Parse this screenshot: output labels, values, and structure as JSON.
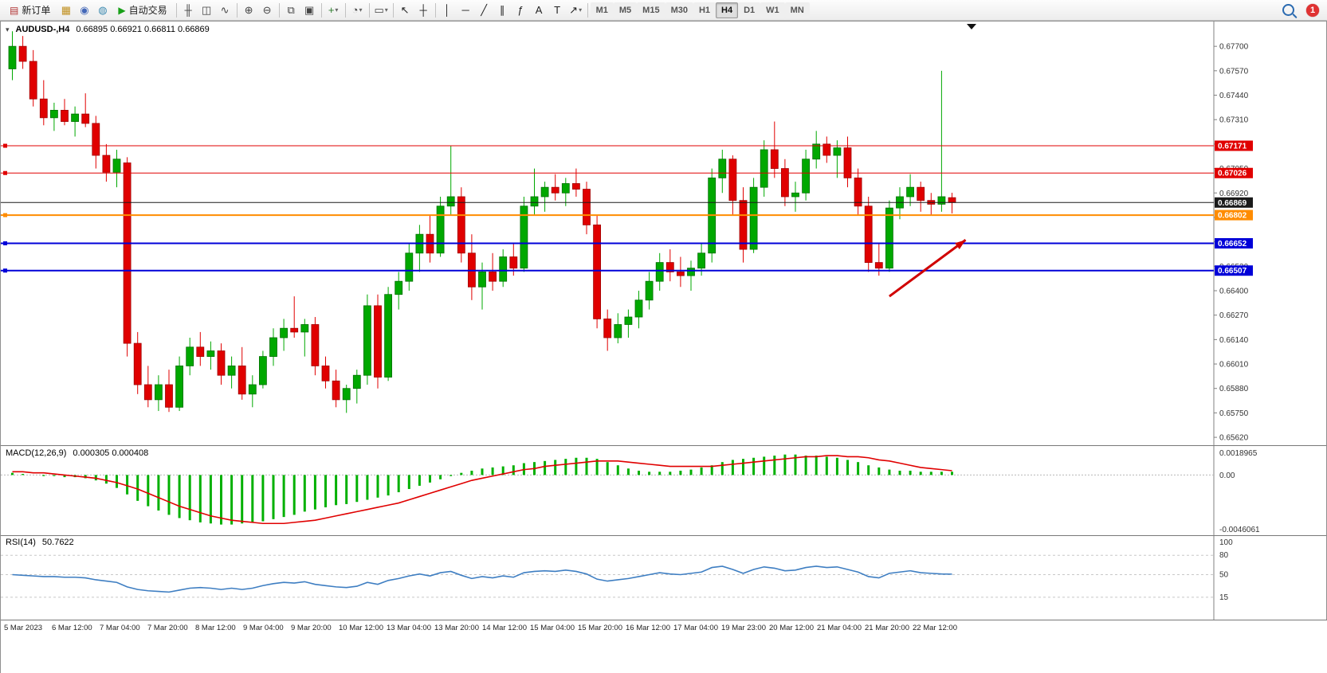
{
  "toolbar": {
    "new_order_label": "新订单",
    "auto_trading_label": "自动交易",
    "timeframes": [
      "M1",
      "M5",
      "M15",
      "M30",
      "H1",
      "H4",
      "D1",
      "W1",
      "MN"
    ],
    "active_timeframe": "H4",
    "notification_count": "1",
    "items": [
      {
        "type": "button",
        "name": "new-order-button",
        "glyph": "▤",
        "glyph_color": "#b03030",
        "label_key": "new_order_label"
      },
      {
        "type": "icon",
        "name": "market-watch-icon",
        "glyph": "▦",
        "color": "#c09020"
      },
      {
        "type": "icon",
        "name": "navigator-icon",
        "glyph": "◉",
        "color": "#4468b8"
      },
      {
        "type": "icon",
        "name": "terminal-icon",
        "glyph": "◍",
        "color": "#3d8ab0"
      },
      {
        "type": "button",
        "name": "auto-trading-button",
        "glyph": "▶",
        "glyph_color": "#18a018",
        "label_key": "auto_trading_label"
      },
      {
        "type": "sep"
      },
      {
        "type": "icon",
        "name": "bar-chart-icon",
        "glyph": "╫",
        "color": "#444"
      },
      {
        "type": "icon",
        "name": "candlestick-chart-icon",
        "glyph": "◫",
        "color": "#444"
      },
      {
        "type": "icon",
        "name": "line-chart-icon",
        "glyph": "∿",
        "color": "#444"
      },
      {
        "type": "sep"
      },
      {
        "type": "icon",
        "name": "zoom-in-icon",
        "glyph": "⊕",
        "color": "#444"
      },
      {
        "type": "icon",
        "name": "zoom-out-icon",
        "glyph": "⊖",
        "color": "#444"
      },
      {
        "type": "sep"
      },
      {
        "type": "icon",
        "name": "tile-windows-icon",
        "glyph": "⧉",
        "color": "#444"
      },
      {
        "type": "icon",
        "name": "cascade-windows-icon",
        "glyph": "▣",
        "color": "#444"
      },
      {
        "type": "sep"
      },
      {
        "type": "icon",
        "name": "new-chart-icon",
        "glyph": "+",
        "color": "#2a7a2a",
        "caret": true
      },
      {
        "type": "sep"
      },
      {
        "type": "icon",
        "name": "period-icon",
        "glyph": "◔",
        "color": "#444",
        "caret": true
      },
      {
        "type": "sep"
      },
      {
        "type": "icon",
        "name": "chart-shot-icon",
        "glyph": "▭",
        "color": "#444",
        "caret": true
      },
      {
        "type": "sep"
      },
      {
        "type": "icon",
        "name": "cursor-icon",
        "glyph": "↖",
        "color": "#222"
      },
      {
        "type": "icon",
        "name": "crosshair-icon",
        "glyph": "┼",
        "color": "#222"
      },
      {
        "type": "sep"
      },
      {
        "type": "icon",
        "name": "vertical-line-icon",
        "glyph": "│",
        "color": "#222"
      },
      {
        "type": "icon",
        "name": "horizontal-line-icon",
        "glyph": "─",
        "color": "#222"
      },
      {
        "type": "icon",
        "name": "trendline-icon",
        "glyph": "╱",
        "color": "#222"
      },
      {
        "type": "icon",
        "name": "equidistant-channel-icon",
        "glyph": "∥",
        "color": "#222"
      },
      {
        "type": "icon",
        "name": "fibonacci-icon",
        "glyph": "ƒ",
        "color": "#222"
      },
      {
        "type": "icon",
        "name": "text-icon",
        "glyph": "A",
        "color": "#222"
      },
      {
        "type": "icon",
        "name": "text-label-icon",
        "glyph": "T",
        "color": "#222"
      },
      {
        "type": "icon",
        "name": "arrows-icon",
        "glyph": "↗",
        "color": "#222",
        "caret": true
      },
      {
        "type": "sep"
      },
      {
        "type": "timeframes"
      }
    ]
  },
  "chart": {
    "title": "AUDUSD-,H4",
    "ohlc": "0.66895 0.66921 0.66811 0.66869"
  },
  "chart_data": {
    "type": "candlestick",
    "symbol": "AUDUSD",
    "timeframe": "H4",
    "open": 0.66895,
    "high": 0.66921,
    "low": 0.66811,
    "close": 0.66869,
    "colors": {
      "up": "#00a800",
      "down": "#e00000",
      "up_border": "#007000",
      "down_border": "#a00000"
    },
    "price_axis": {
      "view_max": 0.67832,
      "view_min": 0.65578,
      "ticks": [
        "0.67700",
        "0.67570",
        "0.67440",
        "0.67310",
        "0.67180",
        "0.67050",
        "0.66920",
        "0.66790",
        "0.66660",
        "0.66530",
        "0.66400",
        "0.66270",
        "0.66140",
        "0.66010",
        "0.65880",
        "0.65750",
        "0.65620"
      ]
    },
    "time_labels": [
      "5 Mar 2023",
      "6 Mar 12:00",
      "7 Mar 04:00",
      "7 Mar 20:00",
      "8 Mar 12:00",
      "9 Mar 04:00",
      "9 Mar 20:00",
      "10 Mar 12:00",
      "13 Mar 04:00",
      "13 Mar 20:00",
      "14 Mar 12:00",
      "15 Mar 04:00",
      "15 Mar 20:00",
      "16 Mar 12:00",
      "17 Mar 04:00",
      "19 Mar 23:00",
      "20 Mar 12:00",
      "21 Mar 04:00",
      "21 Mar 20:00",
      "22 Mar 12:00"
    ],
    "hlines": [
      {
        "price": 0.67171,
        "label": "0.67171",
        "color": "#e00000",
        "width": 1
      },
      {
        "price": 0.67026,
        "label": "0.67026",
        "color": "#e00000",
        "width": 1
      },
      {
        "price": 0.66869,
        "label": "0.66869",
        "color": "#1a1a1a",
        "width": 1,
        "current": true
      },
      {
        "price": 0.66802,
        "label": "0.66802",
        "color": "#ff8c00",
        "width": 2
      },
      {
        "price": 0.66652,
        "label": "0.66652",
        "color": "#0000d8",
        "width": 2
      },
      {
        "price": 0.66507,
        "label": "0.66507",
        "color": "#0000d8",
        "width": 2
      }
    ],
    "arrow": {
      "from_candle": 84,
      "from_price": 0.6637,
      "to_candle": 91.3,
      "to_price": 0.6667,
      "color": "#d00000"
    },
    "candles": [
      [
        0.6758,
        0.6778,
        0.6752,
        0.677
      ],
      [
        0.677,
        0.67755,
        0.6758,
        0.6762
      ],
      [
        0.6762,
        0.6768,
        0.6738,
        0.6742
      ],
      [
        0.6742,
        0.6752,
        0.6728,
        0.6732
      ],
      [
        0.6732,
        0.674,
        0.6725,
        0.6736
      ],
      [
        0.6736,
        0.6742,
        0.6728,
        0.673
      ],
      [
        0.673,
        0.6738,
        0.6722,
        0.6734
      ],
      [
        0.6734,
        0.6745,
        0.6727,
        0.6729
      ],
      [
        0.6729,
        0.6733,
        0.6705,
        0.6712
      ],
      [
        0.6712,
        0.6718,
        0.6698,
        0.6703
      ],
      [
        0.6703,
        0.6715,
        0.6695,
        0.671
      ],
      [
        0.6708,
        0.6711,
        0.6605,
        0.6612
      ],
      [
        0.6612,
        0.6618,
        0.6585,
        0.659
      ],
      [
        0.659,
        0.66,
        0.6578,
        0.6582
      ],
      [
        0.6582,
        0.6595,
        0.6576,
        0.659
      ],
      [
        0.659,
        0.6598,
        0.65755,
        0.6578
      ],
      [
        0.6578,
        0.6605,
        0.6576,
        0.66
      ],
      [
        0.66,
        0.6615,
        0.6595,
        0.661
      ],
      [
        0.661,
        0.6618,
        0.66,
        0.6605
      ],
      [
        0.6605,
        0.6613,
        0.6598,
        0.6608
      ],
      [
        0.6608,
        0.6612,
        0.659,
        0.6595
      ],
      [
        0.6595,
        0.6605,
        0.6588,
        0.66
      ],
      [
        0.66,
        0.661,
        0.6582,
        0.6585
      ],
      [
        0.6585,
        0.6595,
        0.6578,
        0.659
      ],
      [
        0.659,
        0.6608,
        0.6588,
        0.6605
      ],
      [
        0.6605,
        0.662,
        0.66,
        0.6615
      ],
      [
        0.6615,
        0.6625,
        0.6608,
        0.662
      ],
      [
        0.662,
        0.6637,
        0.6615,
        0.6618
      ],
      [
        0.6618,
        0.6625,
        0.6605,
        0.6622
      ],
      [
        0.6622,
        0.6626,
        0.6595,
        0.66
      ],
      [
        0.66,
        0.6605,
        0.6588,
        0.6592
      ],
      [
        0.6592,
        0.6598,
        0.6578,
        0.6582
      ],
      [
        0.6582,
        0.659,
        0.6575,
        0.6588
      ],
      [
        0.6588,
        0.6598,
        0.658,
        0.6595
      ],
      [
        0.6595,
        0.6638,
        0.659,
        0.6632
      ],
      [
        0.6632,
        0.6638,
        0.6588,
        0.6594
      ],
      [
        0.6594,
        0.6642,
        0.6592,
        0.6638
      ],
      [
        0.6638,
        0.665,
        0.663,
        0.6645
      ],
      [
        0.6645,
        0.6665,
        0.664,
        0.666
      ],
      [
        0.666,
        0.6675,
        0.665,
        0.667
      ],
      [
        0.667,
        0.668,
        0.6655,
        0.666
      ],
      [
        0.666,
        0.669,
        0.6658,
        0.6685
      ],
      [
        0.6685,
        0.6717,
        0.668,
        0.669
      ],
      [
        0.669,
        0.6695,
        0.6655,
        0.666
      ],
      [
        0.666,
        0.667,
        0.6635,
        0.6642
      ],
      [
        0.6642,
        0.6655,
        0.663,
        0.665
      ],
      [
        0.665,
        0.666,
        0.664,
        0.6645
      ],
      [
        0.6645,
        0.6662,
        0.6642,
        0.6658
      ],
      [
        0.6658,
        0.6665,
        0.6648,
        0.6652
      ],
      [
        0.6652,
        0.669,
        0.665,
        0.6685
      ],
      [
        0.6685,
        0.6705,
        0.668,
        0.669
      ],
      [
        0.669,
        0.6698,
        0.6682,
        0.6695
      ],
      [
        0.6695,
        0.6702,
        0.6688,
        0.6692
      ],
      [
        0.6692,
        0.67,
        0.6685,
        0.6697
      ],
      [
        0.6697,
        0.6705,
        0.669,
        0.6694
      ],
      [
        0.6694,
        0.6698,
        0.667,
        0.6675
      ],
      [
        0.6675,
        0.668,
        0.662,
        0.6625
      ],
      [
        0.6625,
        0.663,
        0.6608,
        0.6615
      ],
      [
        0.6615,
        0.6628,
        0.6612,
        0.6622
      ],
      [
        0.6622,
        0.663,
        0.6615,
        0.6626
      ],
      [
        0.6626,
        0.664,
        0.662,
        0.6635
      ],
      [
        0.6635,
        0.665,
        0.663,
        0.6645
      ],
      [
        0.6645,
        0.666,
        0.664,
        0.6655
      ],
      [
        0.6655,
        0.6662,
        0.6645,
        0.665
      ],
      [
        0.665,
        0.6658,
        0.6642,
        0.6648
      ],
      [
        0.6648,
        0.6656,
        0.664,
        0.6652
      ],
      [
        0.6652,
        0.6665,
        0.6648,
        0.666
      ],
      [
        0.666,
        0.6705,
        0.6655,
        0.67
      ],
      [
        0.67,
        0.6715,
        0.6692,
        0.671
      ],
      [
        0.671,
        0.6712,
        0.668,
        0.6688
      ],
      [
        0.6688,
        0.6695,
        0.6655,
        0.6662
      ],
      [
        0.6662,
        0.67,
        0.666,
        0.6695
      ],
      [
        0.6695,
        0.672,
        0.669,
        0.6715
      ],
      [
        0.6715,
        0.673,
        0.67,
        0.6705
      ],
      [
        0.6705,
        0.671,
        0.6685,
        0.669
      ],
      [
        0.669,
        0.6698,
        0.6682,
        0.6692
      ],
      [
        0.6692,
        0.6715,
        0.6688,
        0.671
      ],
      [
        0.671,
        0.6725,
        0.6705,
        0.6718
      ],
      [
        0.6718,
        0.6722,
        0.6708,
        0.6712
      ],
      [
        0.6712,
        0.672,
        0.67,
        0.6716
      ],
      [
        0.6716,
        0.6722,
        0.6695,
        0.67
      ],
      [
        0.67,
        0.6705,
        0.668,
        0.6685
      ],
      [
        0.6685,
        0.669,
        0.665,
        0.6655
      ],
      [
        0.6655,
        0.6665,
        0.6648,
        0.6652
      ],
      [
        0.6652,
        0.6688,
        0.665,
        0.6684
      ],
      [
        0.6684,
        0.6695,
        0.6678,
        0.669
      ],
      [
        0.669,
        0.6702,
        0.6685,
        0.6695
      ],
      [
        0.6695,
        0.6698,
        0.6682,
        0.6688
      ],
      [
        0.6688,
        0.6692,
        0.668,
        0.6686
      ],
      [
        0.6686,
        0.6757,
        0.6682,
        0.669
      ],
      [
        0.66895,
        0.66921,
        0.66811,
        0.66869
      ]
    ],
    "macd": {
      "label": "MACD(12,26,9)",
      "values_text": "0.000305 0.000408",
      "histogram_color": "#00b000",
      "signal_color": "#e00000",
      "axis_labels": [
        "0.0018965",
        "0.00",
        "-0.0046061"
      ],
      "view_max": 0.0021,
      "view_min": -0.005,
      "histogram": [
        0.0002,
        0.0001,
        0.0,
        -0.0001,
        -0.0001,
        -0.0002,
        -0.0002,
        -0.0003,
        -0.0005,
        -0.0008,
        -0.0012,
        -0.0018,
        -0.0024,
        -0.0029,
        -0.0033,
        -0.0037,
        -0.004,
        -0.0042,
        -0.0044,
        -0.0045,
        -0.0046,
        -0.0046,
        -0.0045,
        -0.0044,
        -0.0043,
        -0.0041,
        -0.0039,
        -0.0037,
        -0.0034,
        -0.0032,
        -0.003,
        -0.0028,
        -0.0027,
        -0.0025,
        -0.0023,
        -0.0021,
        -0.0019,
        -0.0016,
        -0.0013,
        -0.001,
        -0.0007,
        -0.0004,
        -0.0001,
        0.0002,
        0.0004,
        0.0006,
        0.0007,
        0.0008,
        0.0009,
        0.0011,
        0.0012,
        0.0013,
        0.0014,
        0.0015,
        0.0016,
        0.0016,
        0.0015,
        0.0012,
        0.0009,
        0.0006,
        0.0004,
        0.0003,
        0.0003,
        0.0003,
        0.0004,
        0.0005,
        0.0007,
        0.0009,
        0.0012,
        0.0014,
        0.0015,
        0.0016,
        0.0017,
        0.0018,
        0.0019,
        0.0019,
        0.0018,
        0.0018,
        0.0017,
        0.0016,
        0.0014,
        0.0012,
        0.0009,
        0.0007,
        0.0005,
        0.0004,
        0.0004,
        0.0003,
        0.0003,
        0.0003,
        0.0003
      ],
      "signal": [
        0.0003,
        0.0003,
        0.0002,
        0.0002,
        0.0001,
        0.0,
        -0.0001,
        -0.0002,
        -0.0003,
        -0.0005,
        -0.0007,
        -0.001,
        -0.0013,
        -0.0017,
        -0.0021,
        -0.0025,
        -0.0029,
        -0.0032,
        -0.0035,
        -0.0038,
        -0.004,
        -0.0042,
        -0.0043,
        -0.0044,
        -0.0045,
        -0.0045,
        -0.0045,
        -0.0044,
        -0.0043,
        -0.0042,
        -0.004,
        -0.0038,
        -0.0036,
        -0.0034,
        -0.0032,
        -0.003,
        -0.0028,
        -0.0026,
        -0.0023,
        -0.002,
        -0.0017,
        -0.0014,
        -0.0011,
        -0.0008,
        -0.0005,
        -0.0003,
        -0.0001,
        0.0001,
        0.0003,
        0.0005,
        0.0006,
        0.0008,
        0.0009,
        0.001,
        0.0011,
        0.0012,
        0.0013,
        0.0013,
        0.0013,
        0.0012,
        0.0011,
        0.001,
        0.0009,
        0.0008,
        0.0008,
        0.0008,
        0.0008,
        0.0008,
        0.0009,
        0.001,
        0.0011,
        0.0012,
        0.0013,
        0.0014,
        0.0015,
        0.0016,
        0.0017,
        0.0017,
        0.0018,
        0.0018,
        0.0017,
        0.0017,
        0.0016,
        0.0014,
        0.0013,
        0.0011,
        0.0009,
        0.0007,
        0.0006,
        0.0005,
        0.0004
      ]
    },
    "rsi": {
      "label": "RSI(14)",
      "value_text": "50.7622",
      "line_color": "#3e7ec2",
      "axis_labels": [
        "100",
        "80",
        "50",
        "15"
      ],
      "levels": [
        80,
        50,
        15
      ],
      "values": [
        50,
        49,
        48,
        47,
        47,
        46,
        46,
        45,
        42,
        40,
        38,
        31,
        27,
        25,
        24,
        23,
        26,
        29,
        30,
        29,
        27,
        29,
        27,
        29,
        33,
        36,
        38,
        37,
        39,
        35,
        33,
        31,
        30,
        32,
        38,
        35,
        41,
        44,
        48,
        51,
        48,
        53,
        55,
        49,
        44,
        47,
        45,
        48,
        46,
        53,
        55,
        56,
        55,
        57,
        55,
        51,
        43,
        40,
        42,
        44,
        47,
        50,
        53,
        51,
        50,
        52,
        54,
        61,
        63,
        58,
        52,
        58,
        62,
        60,
        56,
        57,
        61,
        63,
        61,
        62,
        58,
        54,
        47,
        45,
        52,
        54,
        56,
        53,
        52,
        51,
        50.76
      ]
    }
  }
}
